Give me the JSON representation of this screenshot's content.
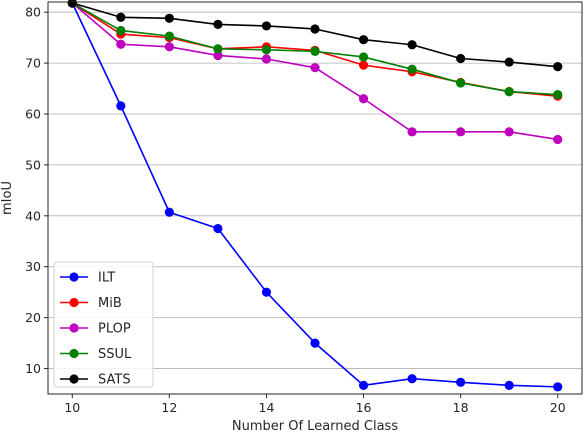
{
  "chart_data": {
    "type": "line",
    "xlabel": "Number Of Learned Class",
    "ylabel": "mIoU",
    "xlim": [
      9.5,
      20.5
    ],
    "ylim": [
      5,
      82
    ],
    "x_ticks": [
      10,
      12,
      14,
      16,
      18,
      20
    ],
    "y_ticks": [
      10,
      20,
      30,
      40,
      50,
      60,
      70,
      80
    ],
    "grid": "horizontal",
    "legend_position": "bottom-left",
    "x": [
      10,
      11,
      12,
      13,
      14,
      15,
      16,
      17,
      18,
      19,
      20
    ],
    "series": [
      {
        "name": "ILT",
        "color": "#0000ff",
        "values": [
          81.8,
          61.6,
          40.7,
          37.5,
          25.0,
          15.0,
          6.7,
          8.0,
          7.3,
          6.7,
          6.4
        ]
      },
      {
        "name": "MiB",
        "color": "#ff0000",
        "values": [
          81.8,
          75.7,
          75.0,
          72.8,
          73.2,
          72.5,
          69.6,
          68.3,
          66.2,
          64.4,
          63.5
        ]
      },
      {
        "name": "PLOP",
        "color": "#bf00bf",
        "values": [
          81.8,
          73.7,
          73.2,
          71.5,
          70.8,
          69.1,
          63.0,
          56.5,
          56.5,
          56.5,
          55.0
        ]
      },
      {
        "name": "SSUL",
        "color": "#008000",
        "values": [
          81.8,
          76.4,
          75.3,
          72.8,
          72.6,
          72.3,
          71.2,
          68.8,
          66.1,
          64.4,
          63.8
        ]
      },
      {
        "name": "SATS",
        "color": "#000000",
        "values": [
          81.8,
          79.0,
          78.8,
          77.6,
          77.3,
          76.7,
          74.6,
          73.6,
          70.9,
          70.2,
          69.3
        ]
      }
    ]
  }
}
